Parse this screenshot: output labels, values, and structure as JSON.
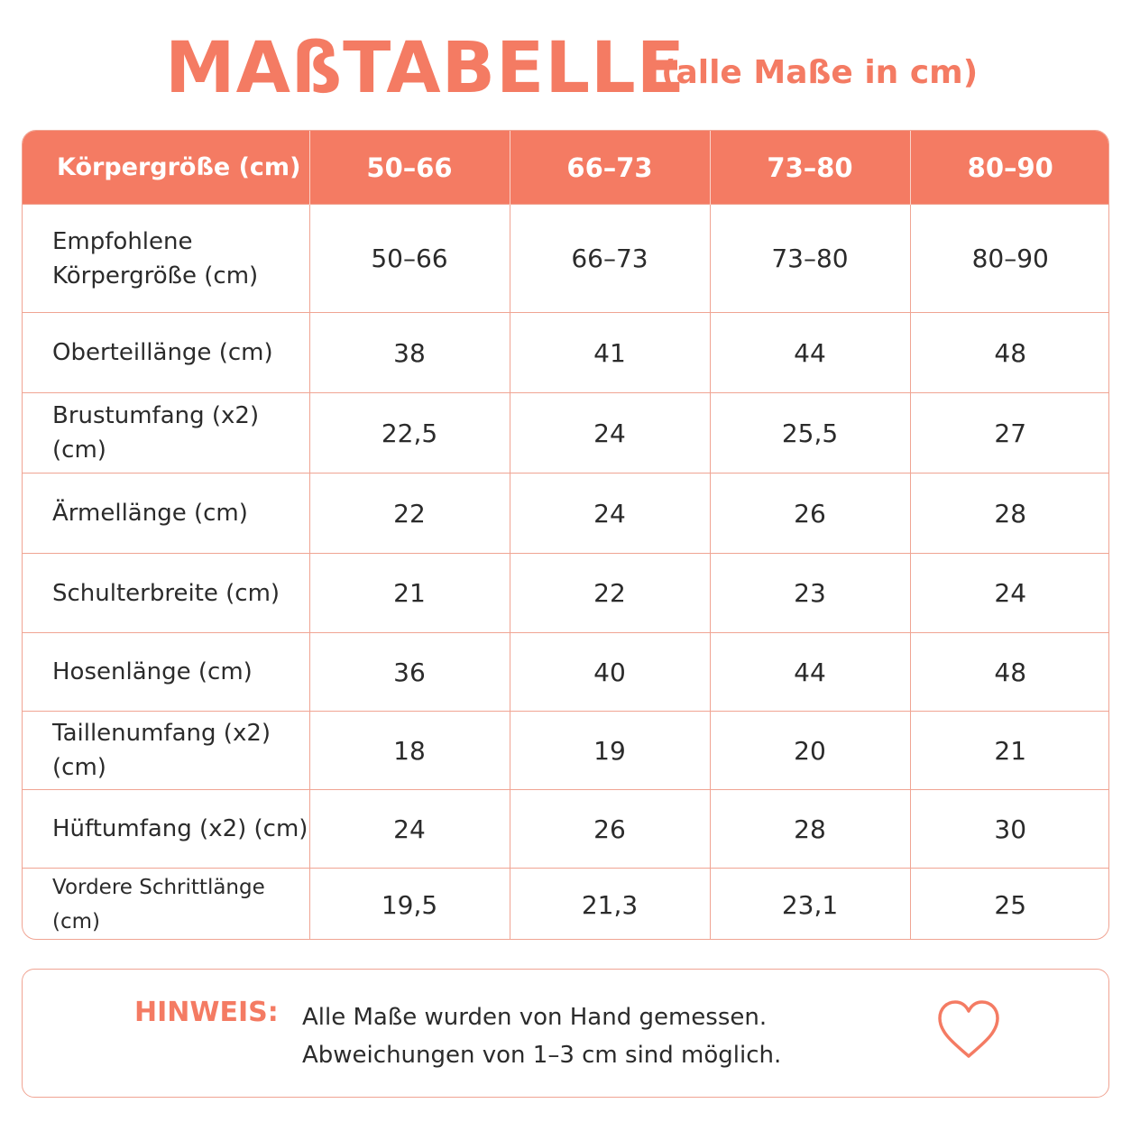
{
  "title": "MAßTABELLE",
  "subtitle": "(alle Maße in cm)",
  "table": {
    "header": [
      "Körpergröße (cm)",
      "50–66",
      "66–73",
      "73–80",
      "80–90"
    ],
    "rows": [
      {
        "label": "Empfohlene Körpergröße (cm)",
        "values": [
          "50–66",
          "66–73",
          "73–80",
          "80–90"
        ]
      },
      {
        "label": "Oberteillänge (cm)",
        "values": [
          "38",
          "41",
          "44",
          "48"
        ]
      },
      {
        "label": "Brustumfang (x2) (cm)",
        "values": [
          "22,5",
          "24",
          "25,5",
          "27"
        ]
      },
      {
        "label": "Ärmellänge (cm)",
        "values": [
          "22",
          "24",
          "26",
          "28"
        ]
      },
      {
        "label": "Schulterbreite (cm)",
        "values": [
          "21",
          "22",
          "23",
          "24"
        ]
      },
      {
        "label": "Hosenlänge (cm)",
        "values": [
          "36",
          "40",
          "44",
          "48"
        ]
      },
      {
        "label": "Taillenumfang (x2) (cm)",
        "values": [
          "18",
          "19",
          "20",
          "21"
        ]
      },
      {
        "label": "Hüftumfang (x2) (cm)",
        "values": [
          "24",
          "26",
          "28",
          "30"
        ]
      },
      {
        "label": "Vordere Schrittlänge (cm)",
        "values": [
          "19,5",
          "21,3",
          "23,1",
          "25"
        ]
      }
    ]
  },
  "note": {
    "label": "HINWEIS:",
    "line1": "Alle Maße wurden von Hand gemessen.",
    "line2": "Abweichungen von 1–3 cm sind möglich.",
    "icon": "heart-icon"
  },
  "colors": {
    "accent": "#f47b63",
    "border": "#f0a493",
    "text": "#2b2b2b"
  }
}
